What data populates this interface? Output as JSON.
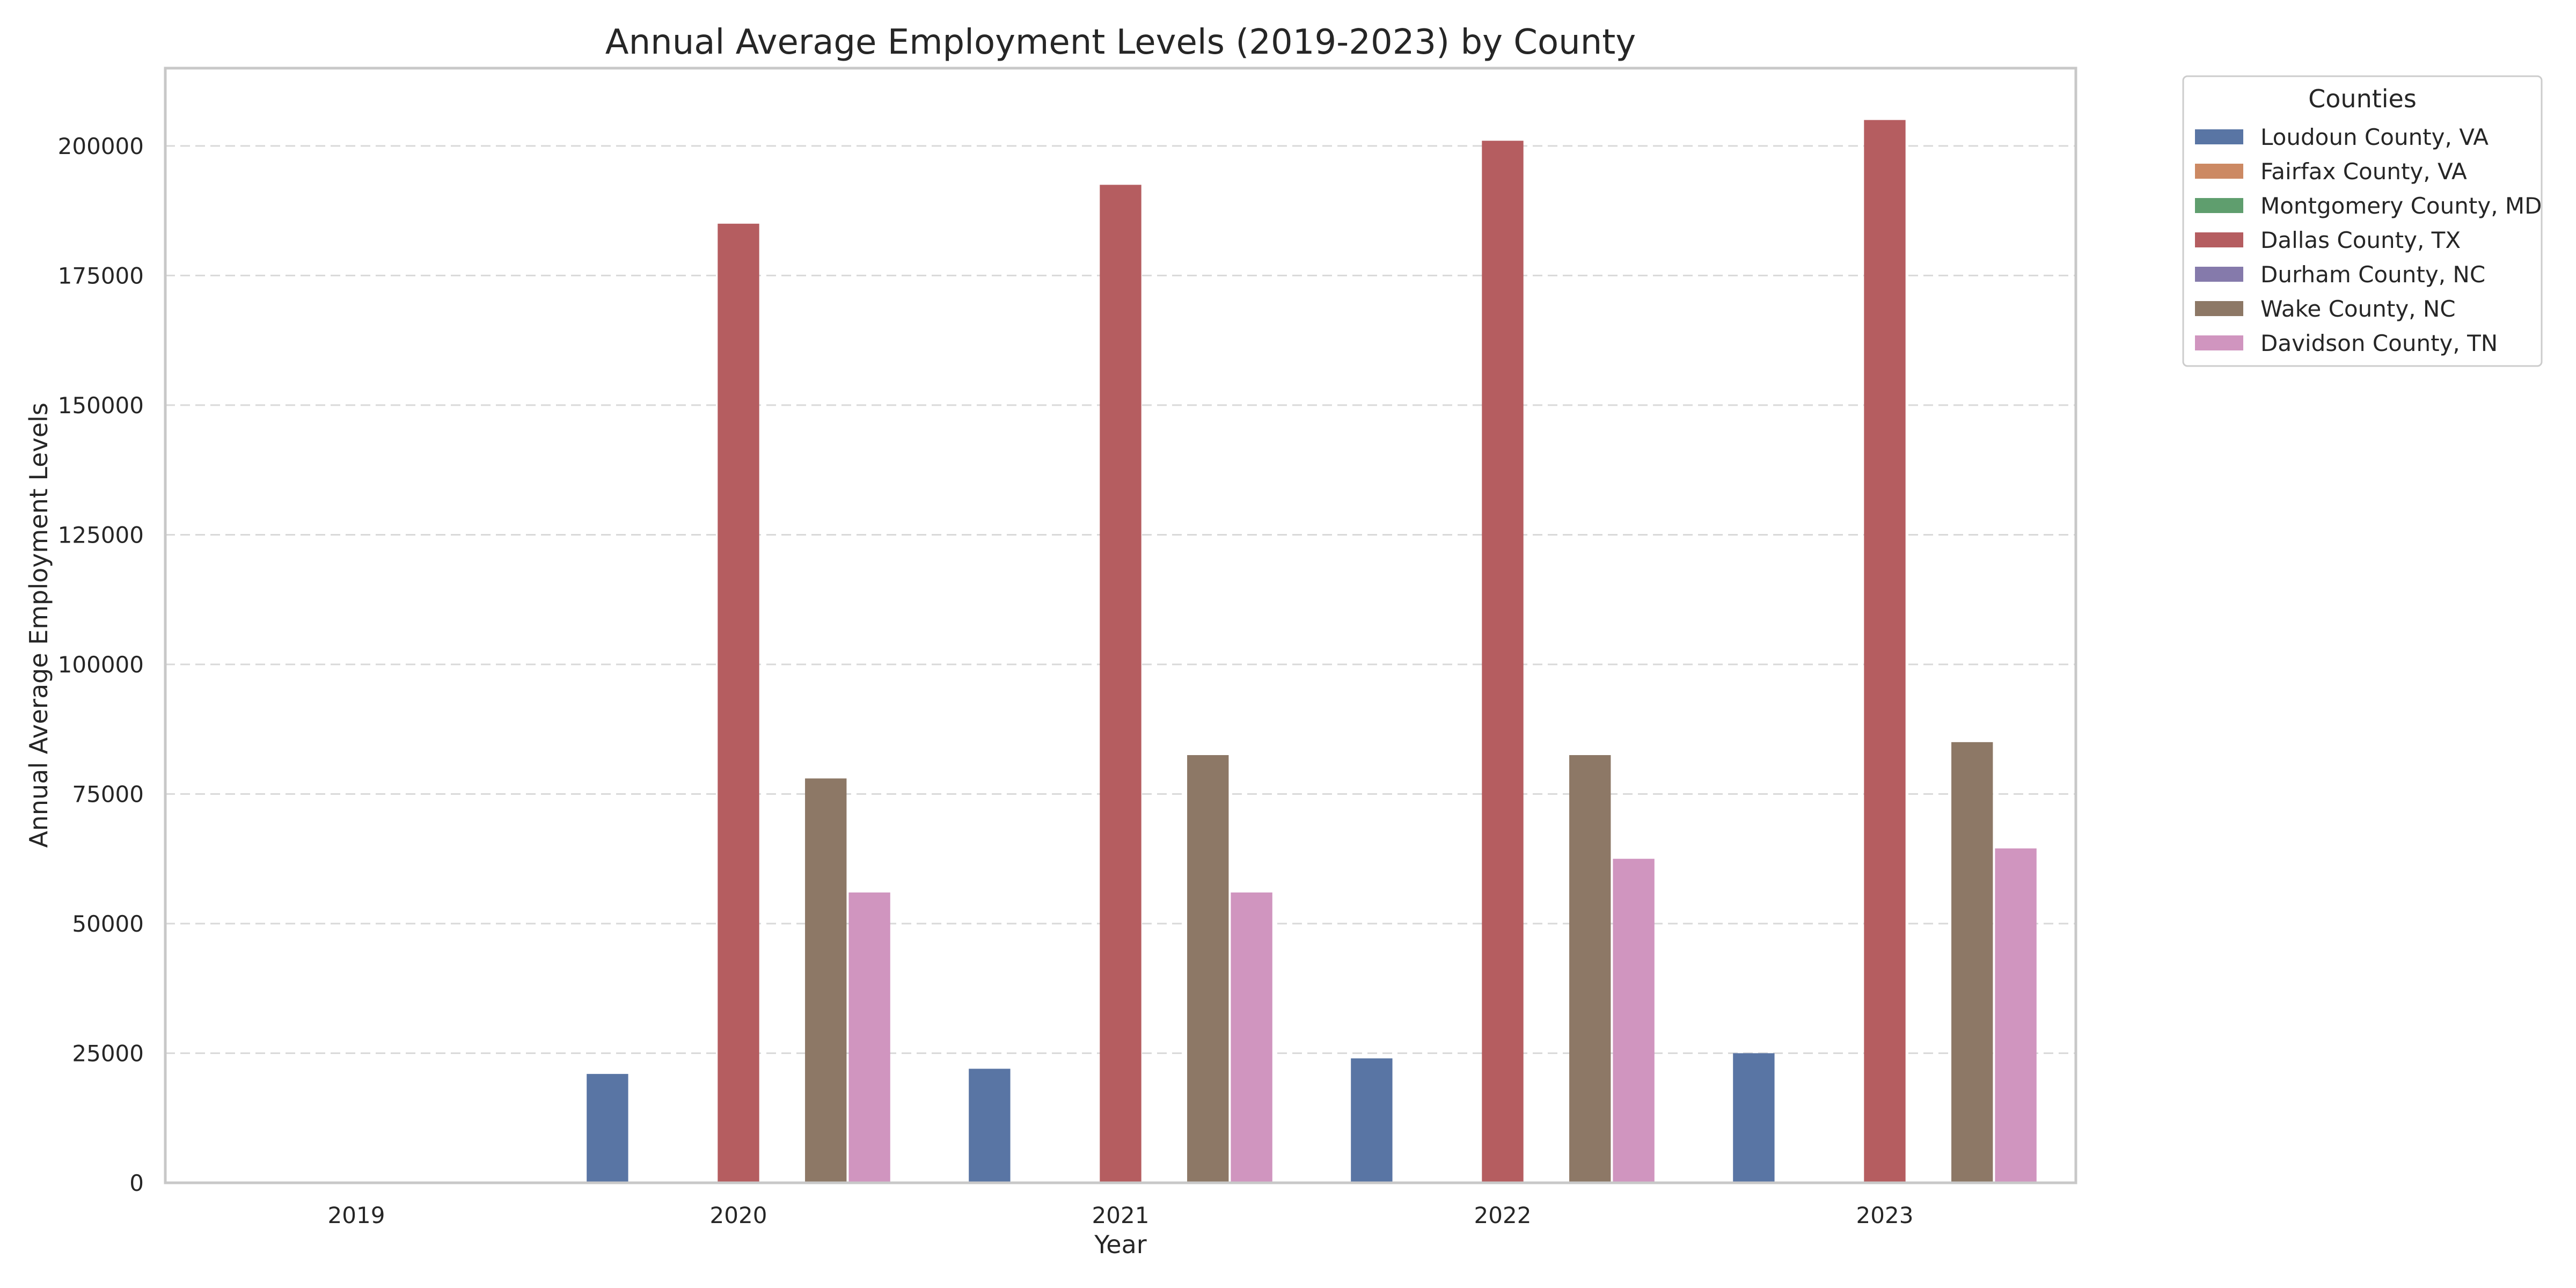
{
  "chart_data": {
    "type": "bar",
    "title": "Annual Average Employment Levels (2019-2023) by County",
    "xlabel": "Year",
    "ylabel": "Annual Average Employment Levels",
    "categories": [
      "2019",
      "2020",
      "2021",
      "2022",
      "2023"
    ],
    "ylim": [
      0,
      215000
    ],
    "yticks": [
      0,
      25000,
      50000,
      75000,
      100000,
      125000,
      150000,
      175000,
      200000
    ],
    "grid": "y-dashed",
    "legend_title": "Counties",
    "legend_position": "outside-right",
    "series": [
      {
        "name": "Loudoun County, VA",
        "color": "#5975a4",
        "values": [
          null,
          21000,
          22000,
          24000,
          25000
        ]
      },
      {
        "name": "Fairfax County, VA",
        "color": "#cc8963",
        "values": [
          null,
          null,
          null,
          null,
          null
        ]
      },
      {
        "name": "Montgomery County, MD",
        "color": "#5f9e6e",
        "values": [
          null,
          null,
          null,
          null,
          null
        ]
      },
      {
        "name": "Dallas County, TX",
        "color": "#b55d60",
        "values": [
          null,
          185000,
          192500,
          201000,
          205000
        ]
      },
      {
        "name": "Durham County, NC",
        "color": "#857aab",
        "values": [
          null,
          null,
          null,
          null,
          null
        ]
      },
      {
        "name": "Wake County, NC",
        "color": "#8d7866",
        "values": [
          null,
          78000,
          82500,
          82500,
          85000
        ]
      },
      {
        "name": "Davidson County, TN",
        "color": "#d095bf",
        "values": [
          null,
          56000,
          56000,
          62500,
          64500
        ]
      }
    ]
  }
}
